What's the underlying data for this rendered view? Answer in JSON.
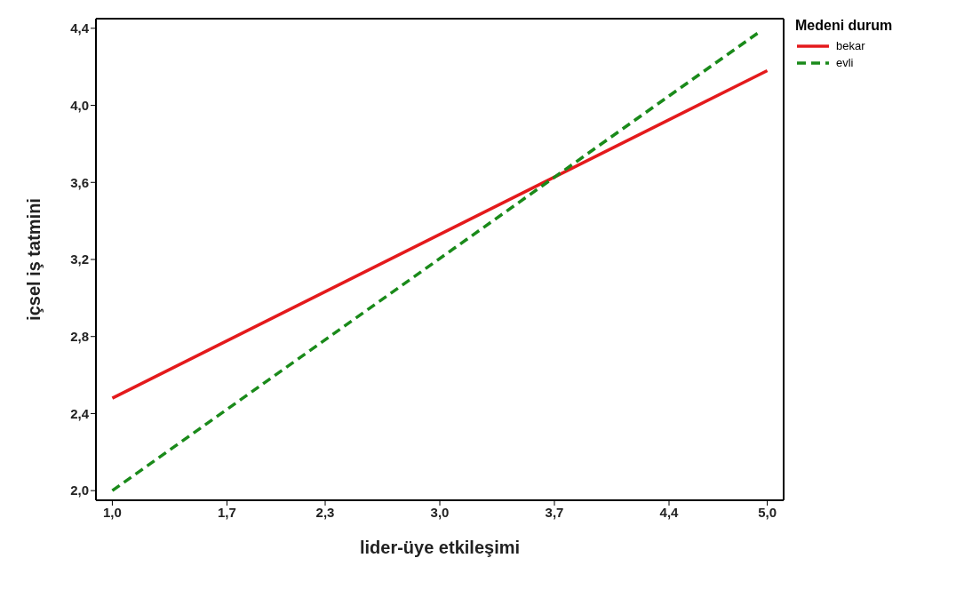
{
  "chart_data": {
    "type": "line",
    "xlabel": "lider-üye etkileşimi",
    "ylabel": "içsel iş tatmini",
    "legend_title": "Medeni durum",
    "legend": "top right",
    "grid": false,
    "marker": "none",
    "xlim": [
      0.9,
      5.1
    ],
    "xticks": [
      {
        "value": 1.0,
        "label": "1,0"
      },
      {
        "value": 1.7,
        "label": "1,7"
      },
      {
        "value": 2.3,
        "label": "2,3"
      },
      {
        "value": 3.0,
        "label": "3,0"
      },
      {
        "value": 3.7,
        "label": "3,7"
      },
      {
        "value": 4.4,
        "label": "4,4"
      },
      {
        "value": 5.0,
        "label": "5,0"
      }
    ],
    "ylim": [
      1.95,
      4.45
    ],
    "yticks": [
      {
        "value": 2.0,
        "label": "2,0"
      },
      {
        "value": 2.4,
        "label": "2,4"
      },
      {
        "value": 2.8,
        "label": "2,8"
      },
      {
        "value": 3.2,
        "label": "3,2"
      },
      {
        "value": 3.6,
        "label": "3,6"
      },
      {
        "value": 4.0,
        "label": "4,0"
      },
      {
        "value": 4.4,
        "label": "4,4"
      }
    ],
    "series": [
      {
        "name": "bekar",
        "color": "#e41a1c",
        "line_style": "solid",
        "x": [
          1.0,
          5.0
        ],
        "values": [
          2.48,
          4.18
        ]
      },
      {
        "name": "evli",
        "color": "#1a8a1a",
        "line_style": "dashed",
        "x": [
          1.0,
          4.95
        ],
        "values": [
          2.0,
          4.38
        ]
      }
    ]
  }
}
